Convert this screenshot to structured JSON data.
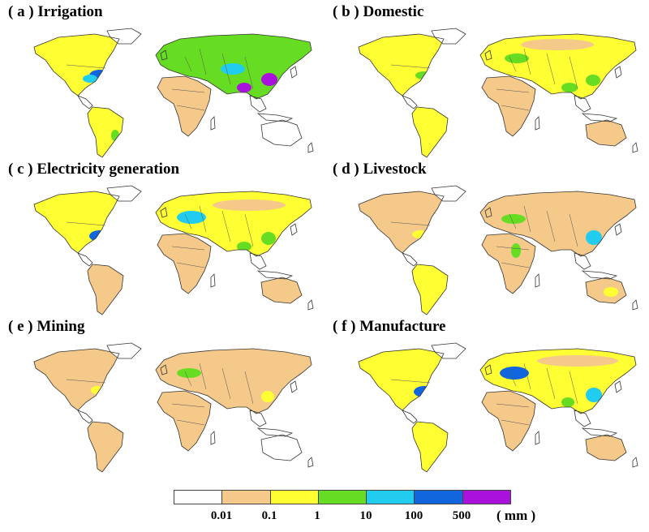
{
  "panels": [
    {
      "title": "( a ) Irrigation"
    },
    {
      "title": "( b ) Domestic"
    },
    {
      "title": "( c ) Electricity generation"
    },
    {
      "title": "( d ) Livestock"
    },
    {
      "title": "( e ) Mining"
    },
    {
      "title": "( f ) Manufacture"
    }
  ],
  "legend": {
    "colors": [
      "#ffffff",
      "#f5c98a",
      "#ffff33",
      "#66dd22",
      "#22ccee",
      "#1166dd",
      "#aa11dd"
    ],
    "ticks": [
      "0.01",
      "0.1",
      "1",
      "10",
      "100",
      "500"
    ],
    "unit": "( mm )"
  }
}
